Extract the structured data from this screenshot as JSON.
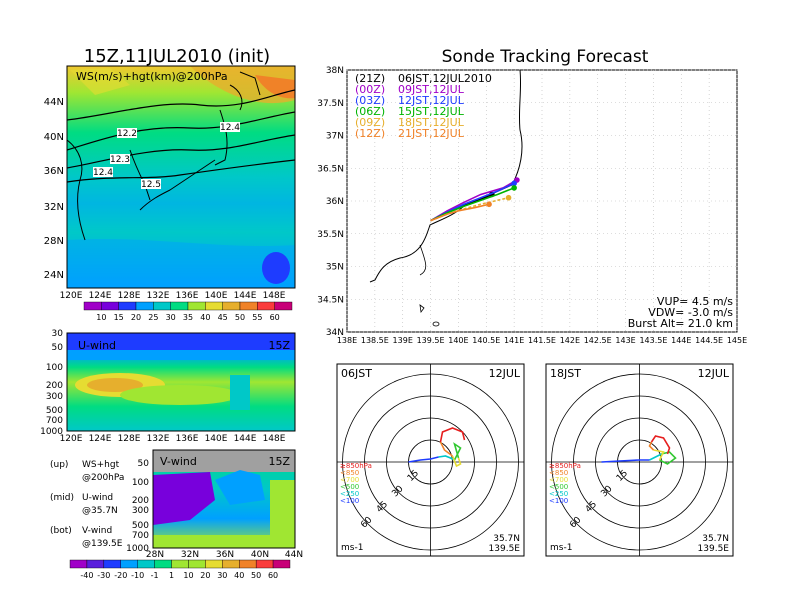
{
  "left_title": "15Z,11JUL2010 (init)",
  "right_title": "Sonde Tracking Forecast",
  "map_panel": {
    "label": "WS(m/s)+hgt(km)@200hPa",
    "lat_ticks": [
      "44N",
      "40N",
      "36N",
      "32N",
      "28N",
      "24N"
    ],
    "lon_ticks": [
      "120E",
      "124E",
      "128E",
      "132E",
      "136E",
      "140E",
      "144E",
      "148E"
    ],
    "contour_labels": [
      "12.2",
      "12.4",
      "12.3",
      "12.4",
      "12.5"
    ],
    "colorbar_ticks": [
      "10",
      "15",
      "20",
      "25",
      "30",
      "35",
      "40",
      "45",
      "50",
      "55",
      "60"
    ],
    "colorbar_colors": [
      "#a000c8",
      "#7800dc",
      "#1e3cff",
      "#00a0ff",
      "#00c8c8",
      "#00dc82",
      "#a0e632",
      "#e6dc32",
      "#e6af2d",
      "#f08228",
      "#fa3c3c",
      "#c80078"
    ]
  },
  "uwind_panel": {
    "label": "U-wind",
    "time": "15Z",
    "y_ticks": [
      "30",
      "50",
      "100",
      "200",
      "300",
      "500",
      "700",
      "1000"
    ],
    "x_ticks": [
      "120E",
      "124E",
      "128E",
      "132E",
      "136E",
      "140E",
      "144E",
      "148E"
    ]
  },
  "vwind_panel": {
    "label": "V-wind",
    "time": "15Z",
    "y_ticks": [
      "50",
      "100",
      "200",
      "300",
      "500",
      "700",
      "1000"
    ],
    "x_ticks": [
      "28N",
      "32N",
      "36N",
      "40N",
      "44N"
    ]
  },
  "legend_notes": [
    {
      "tag": "(up)",
      "line1": "WS+hgt",
      "line2": "@200hPa"
    },
    {
      "tag": "(mid)",
      "line1": "U-wind",
      "line2": "@35.7N"
    },
    {
      "tag": "(bot)",
      "line1": "V-wind",
      "line2": "@139.5E"
    }
  ],
  "bottom_colorbar": {
    "ticks": [
      "-40",
      "-30",
      "-20",
      "-10",
      "-1",
      "1",
      "10",
      "20",
      "30",
      "40",
      "50",
      "60"
    ],
    "colors": [
      "#a000c8",
      "#5a1edc",
      "#1e3cff",
      "#00a0ff",
      "#00c8c8",
      "#00dc82",
      "#a0e632",
      "#a0e632",
      "#e6dc32",
      "#e6af2d",
      "#f08228",
      "#fa3c3c",
      "#c80078"
    ]
  },
  "track_panel": {
    "lat_ticks": [
      "38N",
      "37.5N",
      "37N",
      "36.5N",
      "36N",
      "35.5N",
      "35N",
      "34.5N",
      "34N"
    ],
    "lon_ticks": [
      "138E",
      "138.5E",
      "139E",
      "139.5E",
      "140E",
      "140.5E",
      "141E",
      "141.5E",
      "142E",
      "142.5E",
      "143E",
      "143.5E",
      "144E",
      "144.5E",
      "145E"
    ],
    "legend": [
      {
        "tag": "(21Z)",
        "time": "06JST,12JUL2010",
        "color": "#000000"
      },
      {
        "tag": "(00Z)",
        "time": "09JST,12JUL",
        "color": "#a000c8"
      },
      {
        "tag": "(03Z)",
        "time": "12JST,12JUL",
        "color": "#1e3cff"
      },
      {
        "tag": "(06Z)",
        "time": "15JST,12JUL",
        "color": "#00b400"
      },
      {
        "tag": "(09Z)",
        "time": "18JST,12JUL",
        "color": "#e6af2d"
      },
      {
        "tag": "(12Z)",
        "time": "21JST,12JUL",
        "color": "#f08228"
      }
    ],
    "vup": "VUP= 4.5 m/s",
    "vdw": "VDW= -3.0 m/s",
    "burst": "Burst Alt= 21.0 km"
  },
  "hodo_left": {
    "time": "06JST",
    "date": "12JUL",
    "ring_labels": [
      "15",
      "30",
      "45",
      "60"
    ],
    "units": "ms-1",
    "lat": "35.7N",
    "lon": "139.5E"
  },
  "hodo_right": {
    "time": "18JST",
    "date": "12JUL",
    "ring_labels": [
      "15",
      "30",
      "45",
      "60"
    ],
    "units": "ms-1",
    "lat": "35.7N",
    "lon": "139.5E"
  },
  "hodo_levels": [
    {
      "label": "≥850hPa",
      "color": "#e61e1e"
    },
    {
      "label": "<850",
      "color": "#f08228"
    },
    {
      "label": "<700",
      "color": "#e6dc32"
    },
    {
      "label": "<500",
      "color": "#32c832"
    },
    {
      "label": "<250",
      "color": "#00c8c8"
    },
    {
      "label": "<100",
      "color": "#1e3cff"
    }
  ],
  "chart_data": {
    "type": "line",
    "title": "Sonde Tracking Forecast",
    "series": [
      {
        "name": "(21Z) 06JST,12JUL2010",
        "x": [
          139.5,
          139.8,
          140.1,
          140.4,
          140.6
        ],
        "y": [
          35.7,
          35.82,
          35.93,
          36.02,
          36.1
        ]
      },
      {
        "name": "(00Z) 09JST,12JUL",
        "x": [
          139.5,
          139.8,
          140.1,
          140.4,
          140.8,
          141.05
        ],
        "y": [
          35.7,
          35.85,
          35.98,
          36.1,
          36.2,
          36.32
        ]
      },
      {
        "name": "(03Z) 12JST,12JUL",
        "x": [
          139.5,
          139.8,
          140.1,
          140.4,
          140.7,
          141.0
        ],
        "y": [
          35.7,
          35.83,
          35.95,
          36.05,
          36.15,
          36.27
        ]
      },
      {
        "name": "(06Z) 15JST,12JUL",
        "x": [
          139.5,
          139.8,
          140.1,
          140.4,
          140.7,
          141.0
        ],
        "y": [
          35.7,
          35.82,
          35.92,
          36.01,
          36.1,
          36.2
        ]
      },
      {
        "name": "(09Z) 18JST,12JUL",
        "x": [
          139.5,
          139.8,
          140.1,
          140.4,
          140.65,
          140.9
        ],
        "y": [
          35.7,
          35.8,
          35.88,
          35.95,
          36.0,
          36.05
        ]
      },
      {
        "name": "(12Z) 21JST,12JUL",
        "x": [
          139.5,
          139.8,
          140.0,
          140.3,
          140.55
        ],
        "y": [
          35.7,
          35.8,
          35.85,
          35.9,
          35.95
        ]
      }
    ],
    "xlim": [
      138,
      145
    ],
    "ylim": [
      34,
      38
    ],
    "xlabel": "",
    "ylabel": ""
  }
}
